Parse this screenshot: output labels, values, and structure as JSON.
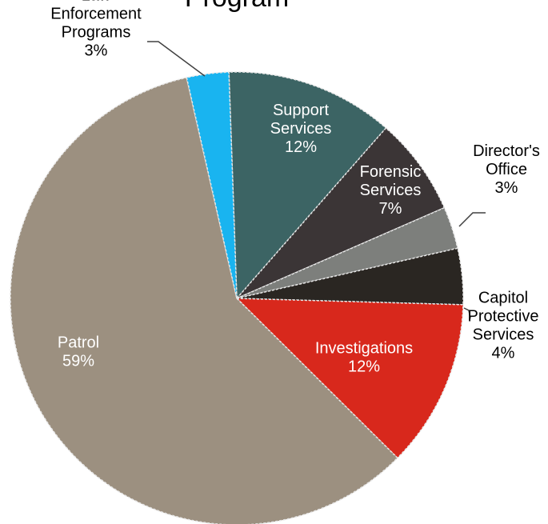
{
  "chart_data": {
    "type": "pie",
    "title": "Program",
    "slices": [
      {
        "label_lines": [
          "Support",
          "Services"
        ],
        "pct_label": "12%",
        "value": 12,
        "color": "#3c6464",
        "label_color": "#ffffff"
      },
      {
        "label_lines": [
          "Forensic",
          "Services"
        ],
        "pct_label": "7%",
        "value": 7,
        "color": "#3b3536",
        "label_color": "#ffffff"
      },
      {
        "label_lines": [
          "Director's",
          "Office"
        ],
        "pct_label": "3%",
        "value": 3,
        "color": "#7d7f7c",
        "label_color": "#000000"
      },
      {
        "label_lines": [
          "Capitol",
          "Protective",
          "Services"
        ],
        "pct_label": "4%",
        "value": 4,
        "color": "#2a2622",
        "label_color": "#000000"
      },
      {
        "label_lines": [
          "Investigations"
        ],
        "pct_label": "12%",
        "value": 12,
        "color": "#d8281c",
        "label_color": "#ffffff"
      },
      {
        "label_lines": [
          "Patrol"
        ],
        "pct_label": "59%",
        "value": 59,
        "color": "#9c9080",
        "label_color": "#ffffff"
      },
      {
        "label_lines": [
          "Law",
          "Enforcement",
          "Programs"
        ],
        "pct_label": "3%",
        "value": 3,
        "color": "#19b4f0",
        "label_color": "#000000"
      }
    ]
  }
}
